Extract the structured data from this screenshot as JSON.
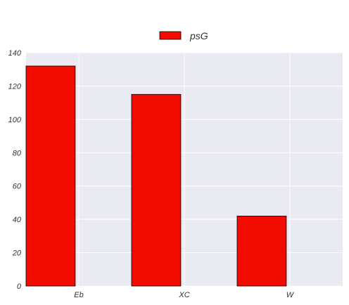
{
  "chart_data": {
    "type": "bar",
    "categories": [
      "Eb",
      "XC",
      "W"
    ],
    "series": [
      {
        "name": "psG",
        "values": [
          132,
          115,
          42
        ],
        "color": "#f20c00"
      }
    ],
    "ylim": [
      0,
      140
    ],
    "yticks": [
      0,
      20,
      40,
      60,
      80,
      100,
      120,
      140
    ],
    "grid": true,
    "legend": "top-center",
    "background_color": "#eaeaf2",
    "grid_color": "#ffffff",
    "bar_edge_color": "#000000"
  }
}
